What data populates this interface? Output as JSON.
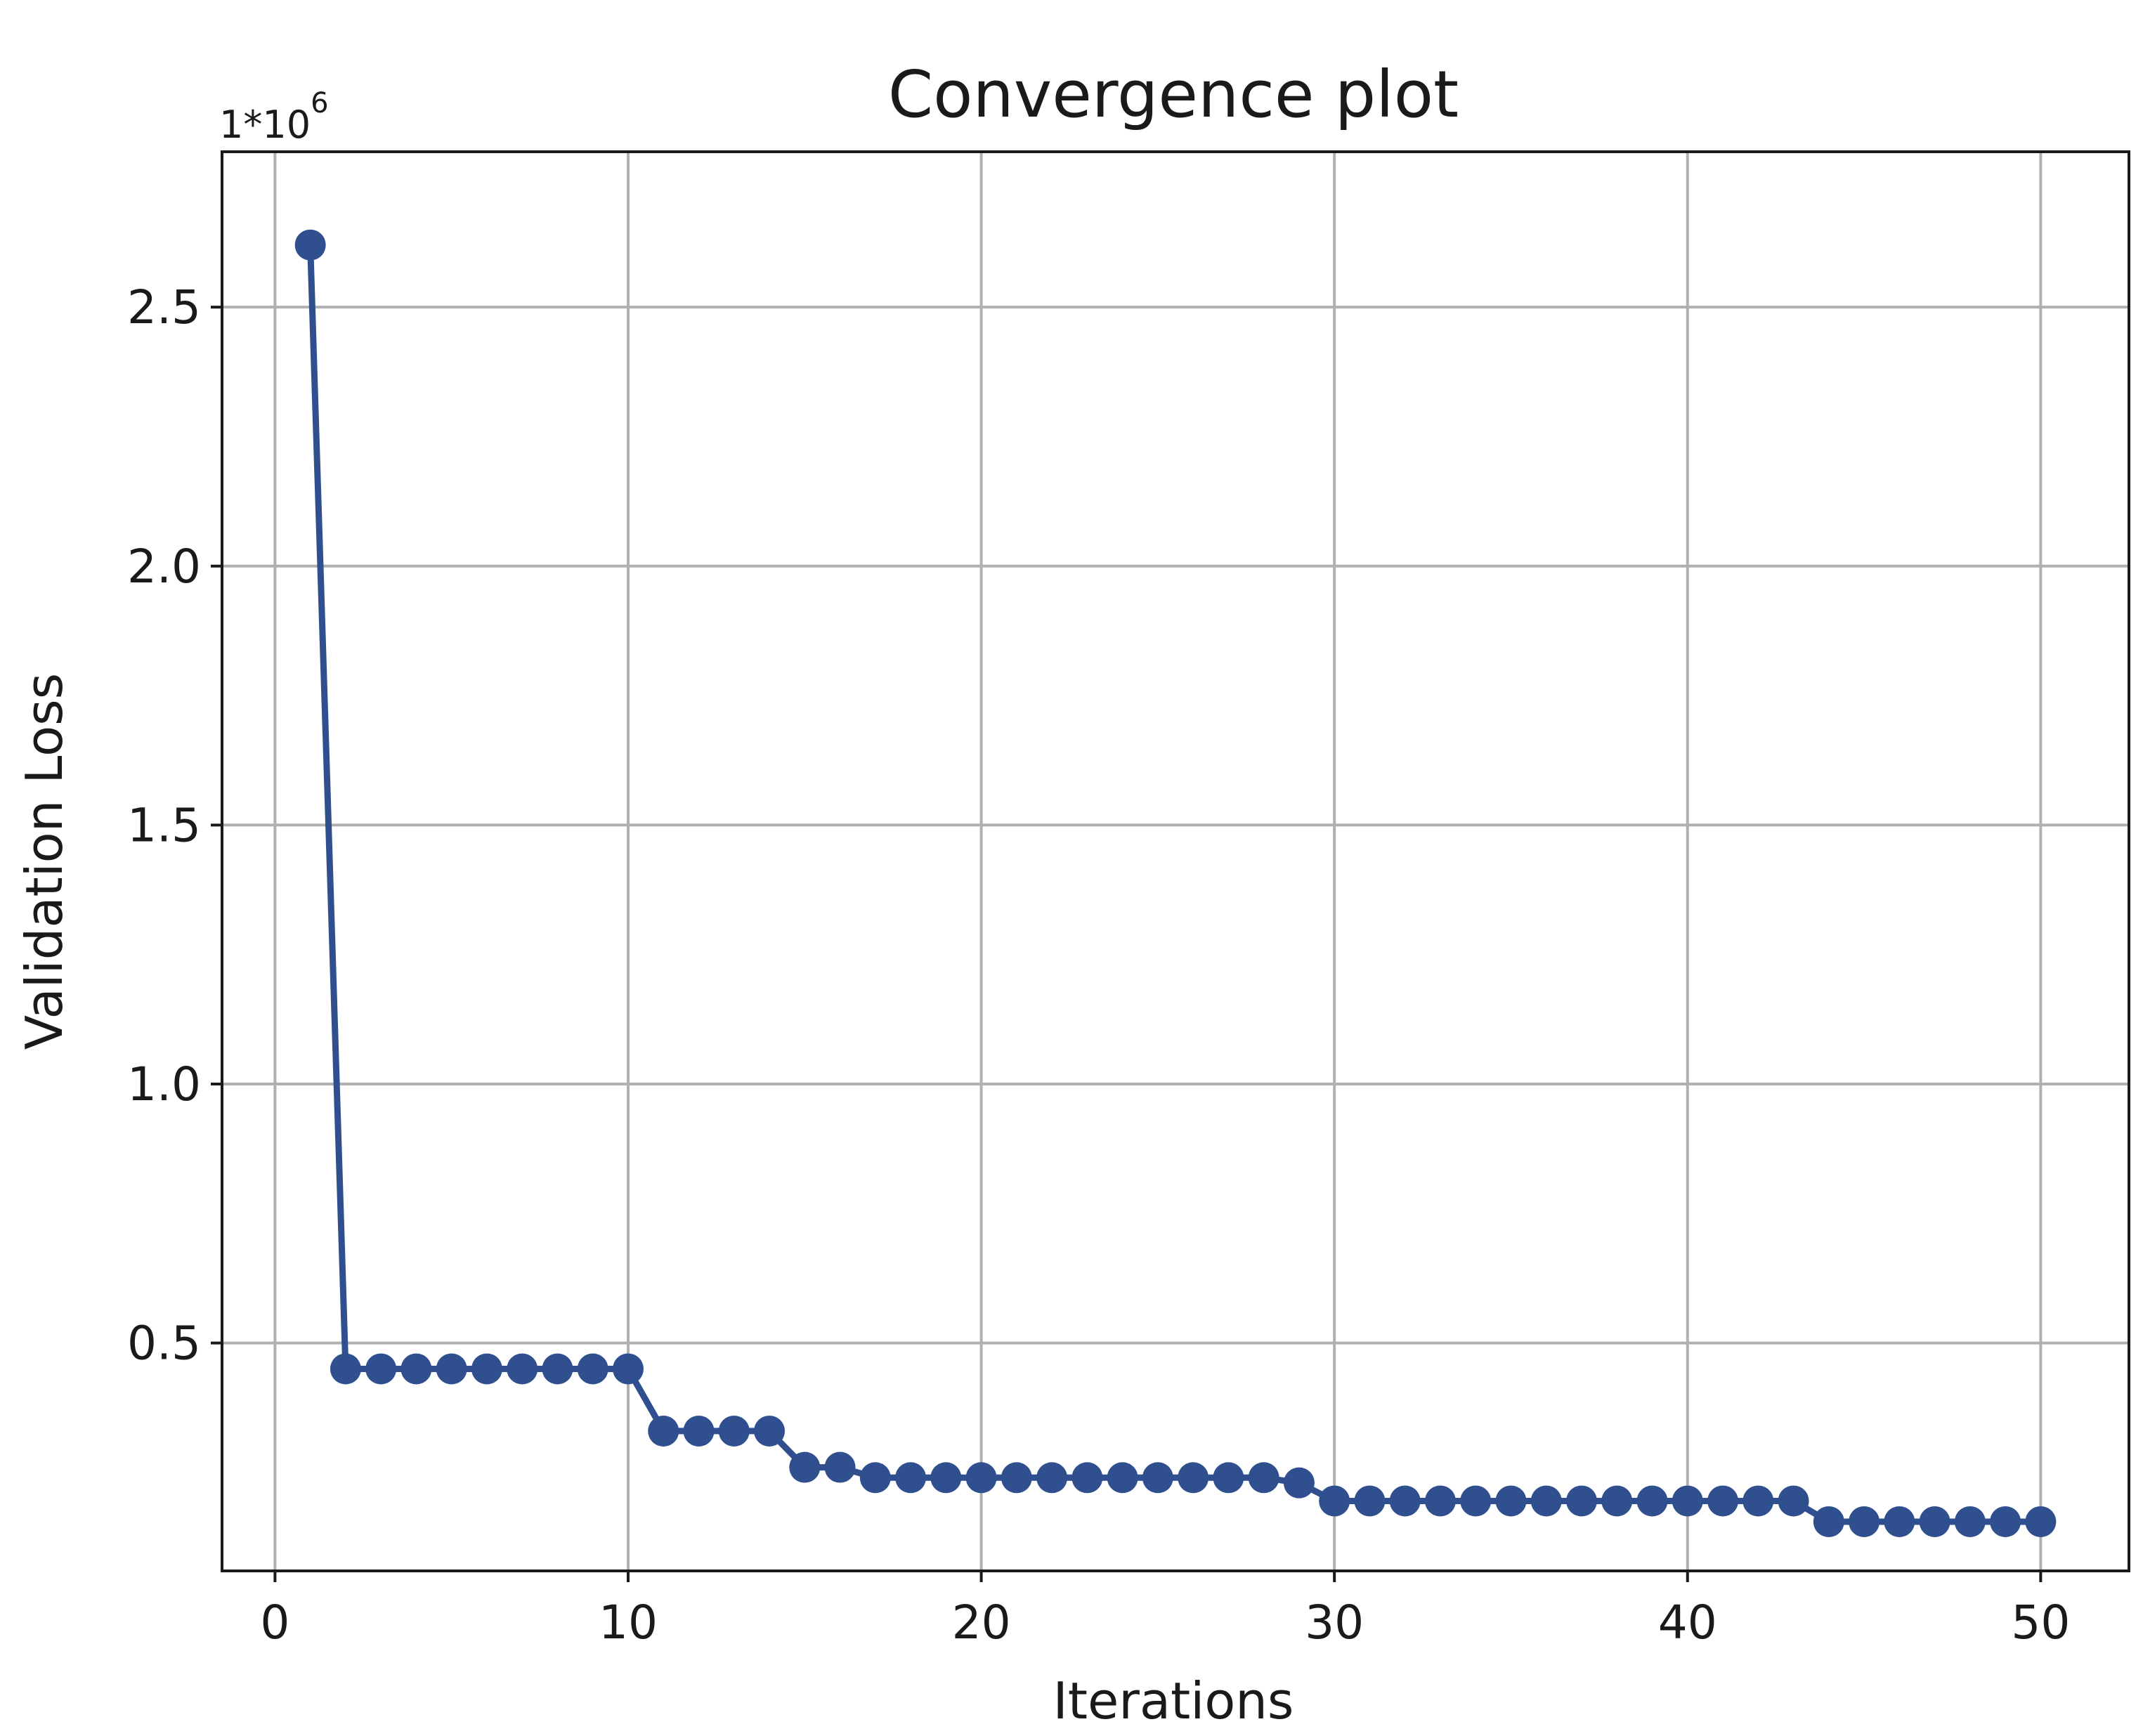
{
  "chart_data": {
    "type": "line",
    "title": "Convergence plot",
    "xlabel": "Iterations",
    "ylabel": "Validation Loss",
    "y_offset_text": "1*10",
    "y_offset_exponent": "6",
    "xlim": [
      -1.5,
      52.5
    ],
    "ylim": [
      0.06,
      2.8
    ],
    "x_ticks": [
      0,
      10,
      20,
      30,
      40,
      50
    ],
    "x_tick_labels": [
      "0",
      "10",
      "20",
      "30",
      "40",
      "50"
    ],
    "y_ticks": [
      0.5,
      1.0,
      1.5,
      2.0,
      2.5
    ],
    "y_tick_labels": [
      "0.5",
      "1.0",
      "1.5",
      "2.0",
      "2.5"
    ],
    "grid": true,
    "marker": "circle",
    "color": "#2f4f8f",
    "series": [
      {
        "x": [
          1,
          2,
          3,
          4,
          5,
          6,
          7,
          8,
          9,
          10,
          11,
          12,
          13,
          14,
          15,
          16,
          17,
          18,
          19,
          20,
          21,
          22,
          23,
          24,
          25,
          26,
          27,
          28,
          29,
          30,
          31,
          32,
          33,
          34,
          35,
          36,
          37,
          38,
          39,
          40,
          41,
          42,
          43,
          44,
          45,
          46,
          47,
          48,
          49,
          50
        ],
        "values": [
          2.62,
          0.45,
          0.45,
          0.45,
          0.45,
          0.45,
          0.45,
          0.45,
          0.45,
          0.45,
          0.33,
          0.33,
          0.33,
          0.33,
          0.26,
          0.26,
          0.24,
          0.24,
          0.24,
          0.24,
          0.24,
          0.24,
          0.24,
          0.24,
          0.24,
          0.24,
          0.24,
          0.24,
          0.23,
          0.195,
          0.195,
          0.195,
          0.195,
          0.195,
          0.195,
          0.195,
          0.195,
          0.195,
          0.195,
          0.195,
          0.195,
          0.195,
          0.195,
          0.155,
          0.155,
          0.155,
          0.155,
          0.155,
          0.155,
          0.155
        ]
      }
    ]
  }
}
